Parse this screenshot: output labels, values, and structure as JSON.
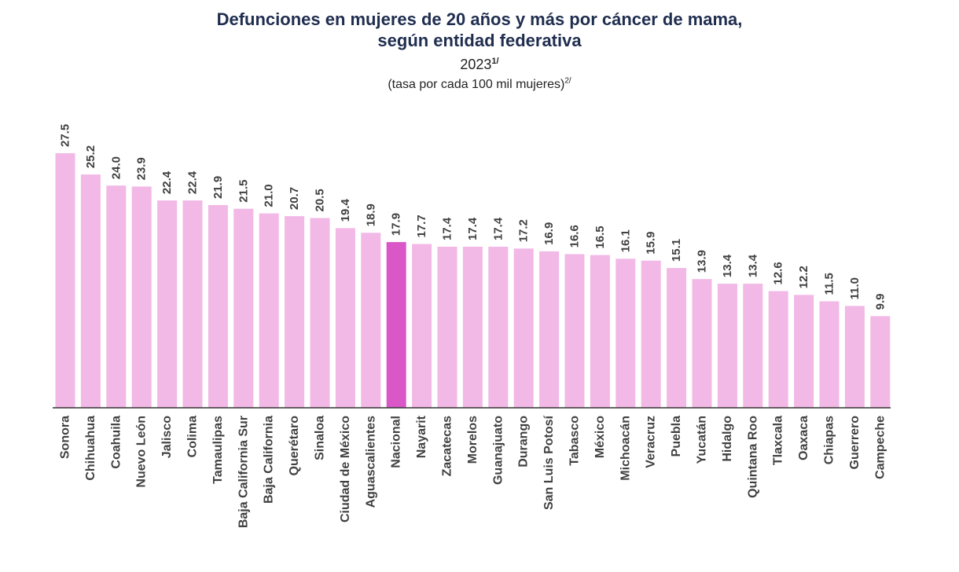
{
  "title_line1": "Defunciones en mujeres de 20 años y más por cáncer de mama,",
  "title_line2": "según entidad federativa",
  "year": "2023",
  "year_note": "1/",
  "subtitle": "(tasa por cada 100 mil mujeres)",
  "subtitle_note": "2/",
  "colors": {
    "bar": "#f2b8e6",
    "highlight": "#d957c7",
    "label": "#404040",
    "axis": "#333333"
  },
  "chart_data": {
    "type": "bar",
    "title": "Defunciones en mujeres de 20 años y más por cáncer de mama, según entidad federativa",
    "subtitle": "2023 (tasa por cada 100 mil mujeres)",
    "xlabel": "",
    "ylabel": "",
    "ylim": [
      0,
      30
    ],
    "grid": false,
    "highlight": "Nacional",
    "categories": [
      "Sonora",
      "Chihuahua",
      "Coahuila",
      "Nuevo León",
      "Jalisco",
      "Colima",
      "Tamaulipas",
      "Baja California Sur",
      "Baja California",
      "Querétaro",
      "Sinaloa",
      "Ciudad de México",
      "Aguascalientes",
      "Nacional",
      "Nayarit",
      "Zacatecas",
      "Morelos",
      "Guanajuato",
      "Durango",
      "San Luis Potosí",
      "Tabasco",
      "México",
      "Michoacán",
      "Veracruz",
      "Puebla",
      "Yucatán",
      "Hidalgo",
      "Quintana Roo",
      "Tlaxcala",
      "Oaxaca",
      "Chiapas",
      "Guerrero",
      "Campeche"
    ],
    "values": [
      27.5,
      25.2,
      24.0,
      23.9,
      22.4,
      22.4,
      21.9,
      21.5,
      21.0,
      20.7,
      20.5,
      19.4,
      18.9,
      17.9,
      17.7,
      17.4,
      17.4,
      17.4,
      17.2,
      16.9,
      16.6,
      16.5,
      16.1,
      15.9,
      15.1,
      13.9,
      13.4,
      13.4,
      12.6,
      12.2,
      11.5,
      11.0,
      9.9
    ],
    "value_labels": [
      "27.5",
      "25.2",
      "24.0",
      "23.9",
      "22.4",
      "22.4",
      "21.9",
      "21.5",
      "21.0",
      "20.7",
      "20.5",
      "19.4",
      "18.9",
      "17.9",
      "17.7",
      "17.4",
      "17.4",
      "17.4",
      "17.2",
      "16.9",
      "16.6",
      "16.5",
      "16.1",
      "15.9",
      "15.1",
      "13.9",
      "13.4",
      "13.4",
      "12.6",
      "12.2",
      "11.5",
      "11.0",
      "9.9"
    ]
  }
}
